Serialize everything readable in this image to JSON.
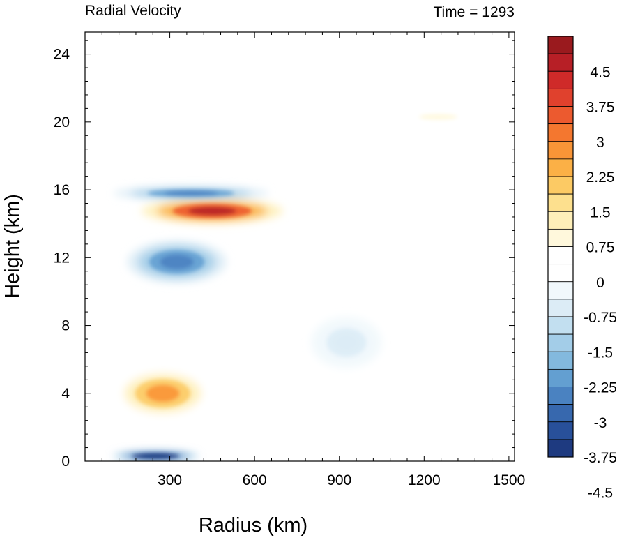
{
  "chart_data": {
    "type": "heatmap",
    "title": "Radial Velocity",
    "subtitle": "Time = 1293",
    "xlabel": "Radius (km)",
    "ylabel": "Height (km)",
    "xlim": [
      0,
      1520
    ],
    "ylim": [
      0,
      25.3
    ],
    "xticks": [
      300,
      600,
      900,
      1200,
      1500
    ],
    "yticks": [
      0,
      4,
      8,
      12,
      16,
      20,
      24
    ],
    "xtick_labels": [
      "300",
      "600",
      "900",
      "1200",
      "1500"
    ],
    "ytick_labels": [
      "0",
      "4",
      "8",
      "12",
      "16",
      "20",
      "24"
    ],
    "colorbar": {
      "range": [
        -5.25,
        5.25
      ],
      "step": 0.375,
      "labels": [
        "4.5",
        "3.75",
        "3",
        "2.25",
        "1.5",
        "0.75",
        "0",
        "-0.75",
        "-1.5",
        "-2.25",
        "-3",
        "-3.75",
        "-4.5"
      ],
      "label_values": [
        4.5,
        3.75,
        3,
        2.25,
        1.5,
        0.75,
        0,
        -0.75,
        -1.5,
        -2.25,
        -3,
        -3.75,
        -4.5
      ],
      "colors": [
        "#9a1a1e",
        "#b71f26",
        "#cf2a29",
        "#e0412d",
        "#ec5a2f",
        "#f4772f",
        "#f99537",
        "#fbb046",
        "#fcca64",
        "#fde08e",
        "#feefb9",
        "#fff8dc",
        "#ffffff",
        "#ffffff",
        "#f1f8fc",
        "#dcecf6",
        "#c2dff0",
        "#a3cde8",
        "#83b9de",
        "#639fd1",
        "#4a82c1",
        "#3768ae",
        "#28509a",
        "#1e3a80"
      ]
    },
    "features": [
      {
        "name": "upper outflow jet",
        "r": [
          200,
          700
        ],
        "z": [
          14.0,
          15.5
        ],
        "peak": 4.8
      },
      {
        "name": "inflow layer aloft",
        "r": [
          100,
          650
        ],
        "z": [
          15.4,
          16.2
        ],
        "peak": -2.5
      },
      {
        "name": "mid-level inflow",
        "r": [
          150,
          500
        ],
        "z": [
          10.5,
          13.0
        ],
        "peak": -2.6
      },
      {
        "name": "lower-mid outflow",
        "r": [
          100,
          450
        ],
        "z": [
          2.5,
          5.5
        ],
        "peak": 3.0
      },
      {
        "name": "boundary-layer inflow",
        "r": [
          100,
          400
        ],
        "z": [
          0,
          0.6
        ],
        "peak": -4.5
      },
      {
        "name": "broad weak inflow",
        "r": [
          800,
          1050
        ],
        "z": [
          5.5,
          8.5
        ],
        "peak": -0.6
      },
      {
        "name": "upper weak outflow",
        "r": [
          1050,
          1450
        ],
        "z": [
          19.8,
          20.8
        ],
        "peak": 0.8
      }
    ]
  }
}
